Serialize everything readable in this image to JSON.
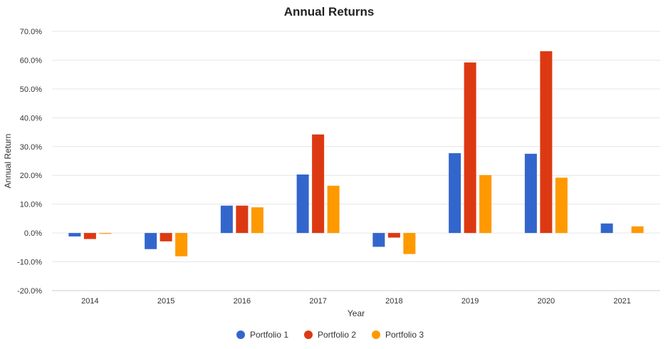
{
  "chart_data": {
    "type": "bar",
    "title": "Annual Returns",
    "xlabel": "Year",
    "ylabel": "Annual Return",
    "categories": [
      "2014",
      "2015",
      "2016",
      "2017",
      "2018",
      "2019",
      "2020",
      "2021"
    ],
    "ylim": [
      -20,
      70
    ],
    "yticks": [
      "70.0%",
      "60.0%",
      "50.0%",
      "40.0%",
      "30.0%",
      "20.0%",
      "10.0%",
      "0.0%",
      "-10.0%",
      "-20.0%"
    ],
    "ytick_values": [
      70,
      60,
      50,
      40,
      30,
      20,
      10,
      0,
      -10,
      -20
    ],
    "grid": true,
    "legend_position": "bottom-center",
    "series": [
      {
        "name": "Portfolio 1",
        "color": "#3366cc",
        "values": [
          -1.2,
          -5.6,
          9.5,
          20.3,
          -4.8,
          27.7,
          27.5,
          3.3
        ]
      },
      {
        "name": "Portfolio 2",
        "color": "#dc3912",
        "values": [
          -2.1,
          -2.9,
          9.5,
          34.2,
          -1.6,
          59.2,
          63.1,
          null
        ]
      },
      {
        "name": "Portfolio 3",
        "color": "#ff9900",
        "values": [
          -0.3,
          -8.1,
          8.9,
          16.4,
          -7.3,
          20.1,
          19.2,
          2.3
        ]
      }
    ]
  }
}
